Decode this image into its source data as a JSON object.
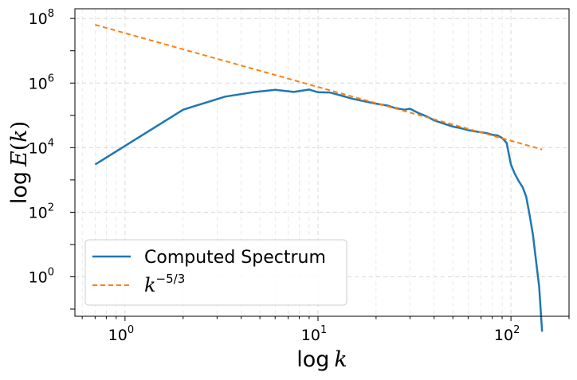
{
  "chart_data": {
    "type": "line",
    "xscale": "log",
    "yscale": "log",
    "xlim": [
      0.55,
      200
    ],
    "ylim": [
      0.06,
      200000000
    ],
    "xlabel": "log k",
    "ylabel": "log E(k)",
    "grid": true,
    "legend_position": "lower-left",
    "x_ticks": [
      {
        "value": 1,
        "base": "10",
        "exp": "0"
      },
      {
        "value": 10,
        "base": "10",
        "exp": "1"
      },
      {
        "value": 100,
        "base": "10",
        "exp": "2"
      }
    ],
    "y_ticks": [
      {
        "value": 1,
        "base": "10",
        "exp": "0"
      },
      {
        "value": 100,
        "base": "10",
        "exp": "2"
      },
      {
        "value": 10000,
        "base": "10",
        "exp": "4"
      },
      {
        "value": 1000000,
        "base": "10",
        "exp": "6"
      },
      {
        "value": 100000000,
        "base": "10",
        "exp": "8"
      }
    ],
    "series": [
      {
        "name": "Computed Spectrum",
        "color": "#1f77b4",
        "style": "solid",
        "x": [
          0.7,
          2,
          3.3,
          4.6,
          6,
          7.5,
          9,
          10,
          11.5,
          13,
          15,
          17,
          20,
          23,
          25,
          28,
          30,
          33,
          37,
          40,
          45,
          50,
          55,
          60,
          65,
          70,
          75,
          80,
          85,
          90,
          95,
          100,
          105,
          110,
          115,
          120,
          125,
          130,
          135,
          140,
          145
        ],
        "y": [
          3000,
          150000,
          380000,
          520000,
          620000,
          530000,
          630000,
          520000,
          510000,
          420000,
          330000,
          280000,
          230000,
          200000,
          170000,
          150000,
          160000,
          120000,
          90000,
          70000,
          55000,
          45000,
          40000,
          35000,
          32000,
          30000,
          28000,
          25000,
          24000,
          20000,
          14000,
          3000,
          1500,
          900,
          600,
          300,
          80,
          20,
          3,
          0.5,
          0.02
        ]
      },
      {
        "name": "k^{-5/3}",
        "legend_base": "k",
        "legend_exp": "−5/3",
        "color": "#ff7f0e",
        "style": "dashed",
        "x": [
          0.7,
          145
        ],
        "y": [
          64000000,
          8800
        ]
      }
    ]
  }
}
